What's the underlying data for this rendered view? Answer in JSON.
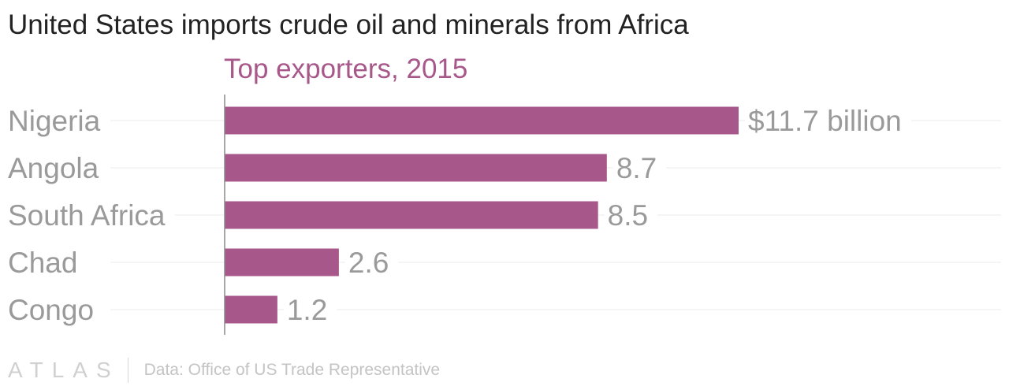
{
  "title": "United States imports crude oil and minerals from Africa",
  "subtitle": "Top exporters, 2015",
  "footer": {
    "logo": "ATLAS",
    "source": "Data: Office of US Trade Representative"
  },
  "colors": {
    "bar": "#a8578a",
    "subtitle": "#a8578a",
    "label": "#9a9a9a",
    "grid": "#ebebeb",
    "axis": "#8a8a8a"
  },
  "chart_data": {
    "type": "bar",
    "orientation": "horizontal",
    "title": "United States imports crude oil and minerals from Africa",
    "subtitle": "Top exporters, 2015",
    "categories": [
      "Nigeria",
      "Angola",
      "South Africa",
      "Chad",
      "Congo"
    ],
    "values": [
      11.7,
      8.7,
      8.5,
      2.6,
      1.2
    ],
    "value_labels": [
      "$11.7 billion",
      "8.7",
      "8.5",
      "2.6",
      "1.2"
    ],
    "xlim": [
      0,
      11.7
    ],
    "grid": true,
    "legend": false
  }
}
